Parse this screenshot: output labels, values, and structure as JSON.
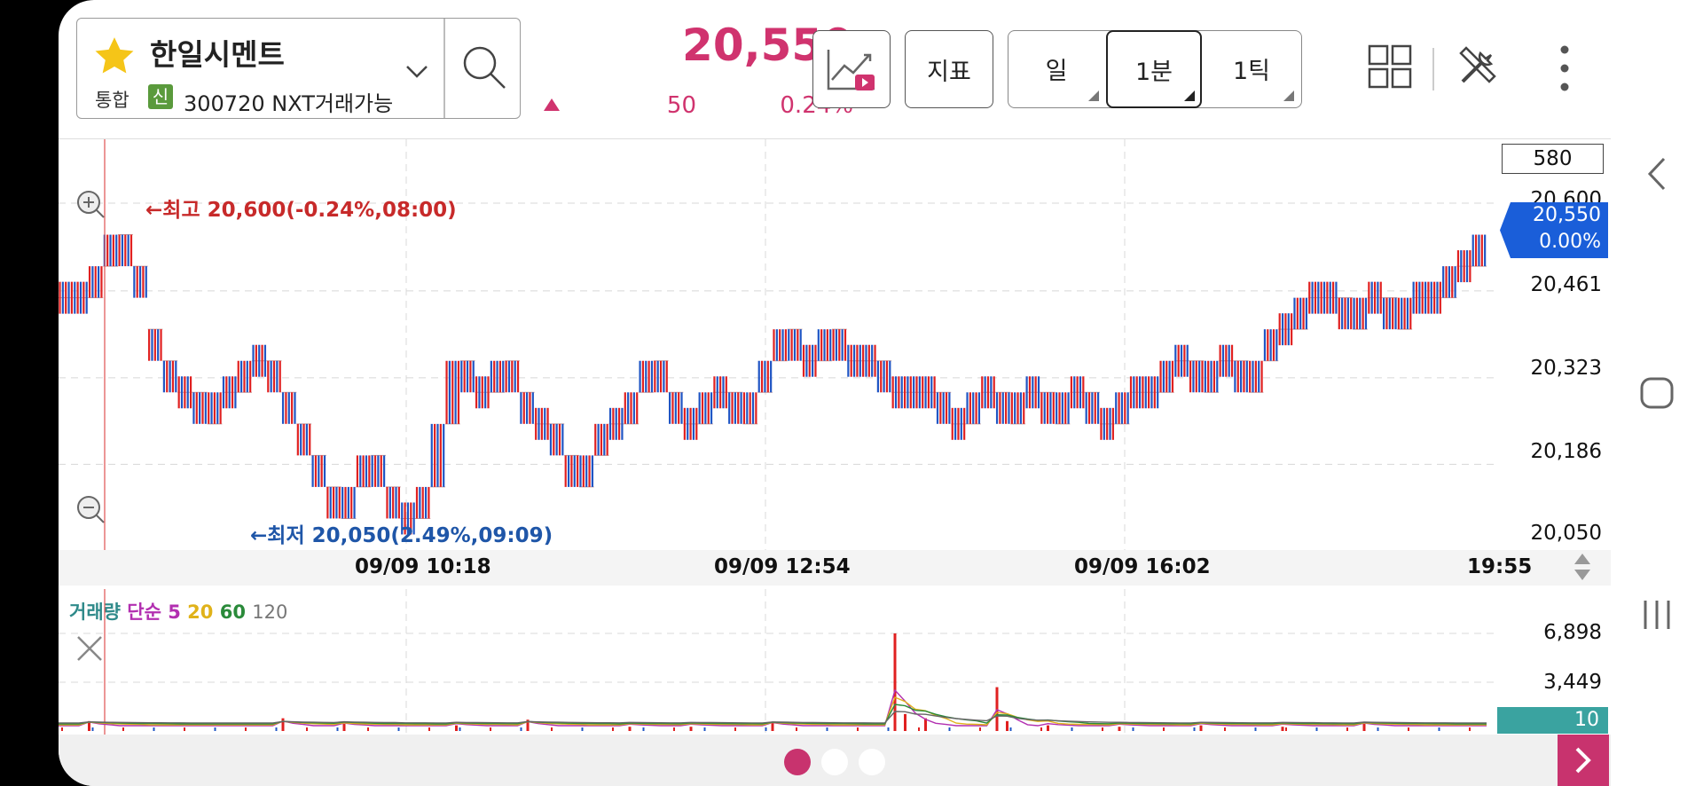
{
  "stock": {
    "name": "한일시멘트",
    "market": "통합",
    "credit_badge": "신",
    "code_text": "300720 NXT거래가능"
  },
  "quote": {
    "price": "20,550",
    "change": "50",
    "change_pct": "0.24%",
    "color": "#d0336e"
  },
  "toolbar": {
    "indicator_label": "지표",
    "periods": [
      {
        "label": "일",
        "active": false
      },
      {
        "label": "1분",
        "active": true
      },
      {
        "label": "1틱",
        "active": false
      }
    ]
  },
  "chart_data": {
    "type": "bar",
    "y_axis_labels": [
      "20,600",
      "20,461",
      "20,323",
      "20,186",
      "20,050"
    ],
    "ylim": [
      20050,
      20600
    ],
    "x_axis_labels": [
      "09/09 10:18",
      "09/09 12:54",
      "09/09 16:02",
      "19:55"
    ],
    "count_box": "580",
    "current_tag": {
      "price": "20,550",
      "pct": "0.00%"
    },
    "high_annotation": "최고 20,600(-0.24%,08:00)",
    "low_annotation": "최저 20,050(2.49%,09:09)",
    "colors": {
      "up": "#e02020",
      "down": "#1f55c4"
    },
    "segments": [
      [
        0,
        20450,
        20450
      ],
      [
        1,
        20450,
        20450
      ],
      [
        2,
        20450,
        20500
      ],
      [
        3,
        20500,
        20550
      ],
      [
        4,
        20550,
        20500
      ],
      [
        5,
        20500,
        20450
      ],
      [
        6,
        20400,
        20350
      ],
      [
        7,
        20350,
        20300
      ],
      [
        8,
        20300,
        20300
      ],
      [
        9,
        20300,
        20250
      ],
      [
        10,
        20250,
        20300
      ],
      [
        11,
        20300,
        20300
      ],
      [
        12,
        20300,
        20350
      ],
      [
        13,
        20350,
        20350
      ],
      [
        14,
        20350,
        20300
      ],
      [
        15,
        20300,
        20250
      ],
      [
        16,
        20250,
        20200
      ],
      [
        17,
        20200,
        20150
      ],
      [
        18,
        20150,
        20100
      ],
      [
        19,
        20100,
        20150
      ],
      [
        20,
        20150,
        20200
      ],
      [
        21,
        20200,
        20150
      ],
      [
        22,
        20150,
        20100
      ],
      [
        23,
        20100,
        20100
      ],
      [
        24,
        20100,
        20150
      ],
      [
        25,
        20150,
        20250
      ],
      [
        26,
        20250,
        20350
      ],
      [
        27,
        20350,
        20300
      ],
      [
        28,
        20300,
        20300
      ],
      [
        29,
        20300,
        20350
      ],
      [
        30,
        20350,
        20300
      ],
      [
        31,
        20300,
        20250
      ],
      [
        32,
        20250,
        20250
      ],
      [
        33,
        20250,
        20200
      ],
      [
        34,
        20200,
        20150
      ],
      [
        35,
        20150,
        20200
      ],
      [
        36,
        20200,
        20250
      ],
      [
        37,
        20250,
        20250
      ],
      [
        38,
        20250,
        20300
      ],
      [
        39,
        20300,
        20350
      ],
      [
        40,
        20350,
        20300
      ],
      [
        41,
        20300,
        20250
      ],
      [
        42,
        20250,
        20250
      ],
      [
        43,
        20250,
        20300
      ],
      [
        44,
        20300,
        20300
      ],
      [
        45,
        20300,
        20250
      ],
      [
        46,
        20250,
        20300
      ],
      [
        47,
        20300,
        20350
      ],
      [
        48,
        20350,
        20400
      ],
      [
        49,
        20400,
        20350
      ],
      [
        50,
        20350,
        20350
      ],
      [
        51,
        20350,
        20400
      ],
      [
        52,
        20400,
        20350
      ],
      [
        53,
        20350,
        20350
      ],
      [
        54,
        20350,
        20350
      ],
      [
        55,
        20350,
        20300
      ],
      [
        56,
        20300,
        20300
      ],
      [
        57,
        20300,
        20300
      ],
      [
        58,
        20300,
        20300
      ],
      [
        59,
        20300,
        20250
      ],
      [
        60,
        20250,
        20250
      ],
      [
        61,
        20250,
        20300
      ],
      [
        62,
        20300,
        20300
      ],
      [
        63,
        20300,
        20250
      ],
      [
        64,
        20250,
        20300
      ],
      [
        65,
        20300,
        20300
      ],
      [
        66,
        20300,
        20250
      ],
      [
        67,
        20250,
        20300
      ],
      [
        68,
        20300,
        20300
      ],
      [
        69,
        20300,
        20250
      ],
      [
        70,
        20250,
        20250
      ],
      [
        71,
        20250,
        20300
      ],
      [
        72,
        20300,
        20300
      ],
      [
        73,
        20300,
        20300
      ],
      [
        74,
        20300,
        20350
      ],
      [
        75,
        20350,
        20350
      ],
      [
        76,
        20350,
        20300
      ],
      [
        77,
        20300,
        20350
      ],
      [
        78,
        20350,
        20350
      ],
      [
        79,
        20350,
        20300
      ],
      [
        80,
        20300,
        20350
      ],
      [
        81,
        20350,
        20400
      ],
      [
        82,
        20400,
        20400
      ],
      [
        83,
        20400,
        20450
      ],
      [
        84,
        20450,
        20450
      ],
      [
        85,
        20450,
        20450
      ],
      [
        86,
        20450,
        20400
      ],
      [
        87,
        20400,
        20450
      ],
      [
        88,
        20450,
        20450
      ],
      [
        89,
        20450,
        20400
      ],
      [
        90,
        20400,
        20450
      ],
      [
        91,
        20450,
        20450
      ],
      [
        92,
        20450,
        20450
      ],
      [
        93,
        20450,
        20500
      ],
      [
        94,
        20500,
        20500
      ],
      [
        95,
        20500,
        20550
      ]
    ]
  },
  "volume": {
    "title": "거래량",
    "ma_type": "단순",
    "ma_periods": [
      {
        "label": "5",
        "color": "#b22fb0"
      },
      {
        "label": "20",
        "color": "#e0b21a"
      },
      {
        "label": "60",
        "color": "#2a8a3a"
      },
      {
        "label": "120",
        "color": "#666666"
      }
    ],
    "title_color": "#2f8a8a",
    "y_axis_labels": [
      "6,898",
      "3,449"
    ],
    "current_tag": "10",
    "spikes": [
      [
        3,
        700
      ],
      [
        22,
        900
      ],
      [
        28,
        500
      ],
      [
        39,
        400
      ],
      [
        46,
        800
      ],
      [
        56,
        300
      ],
      [
        62,
        300
      ],
      [
        70,
        600
      ],
      [
        82,
        6898
      ],
      [
        83,
        1200
      ],
      [
        85,
        900
      ],
      [
        92,
        3100
      ],
      [
        93,
        700
      ],
      [
        97,
        400
      ],
      [
        104,
        300
      ],
      [
        112,
        400
      ],
      [
        120,
        300
      ],
      [
        128,
        500
      ]
    ]
  },
  "pager": {
    "count": 3,
    "active": 0
  }
}
